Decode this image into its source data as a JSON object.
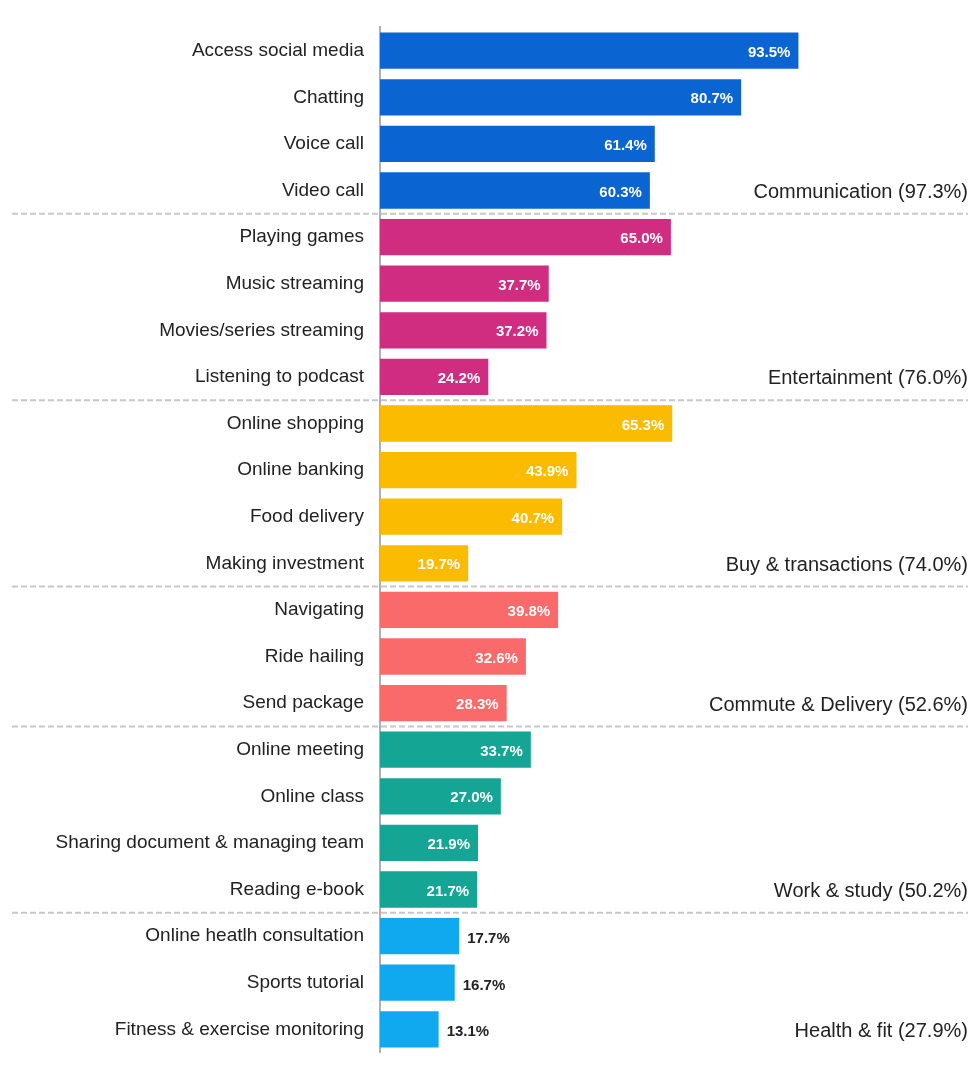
{
  "chart_data": {
    "type": "bar",
    "orientation": "horizontal",
    "categories": [
      "Access social media",
      "Chatting",
      "Voice call",
      "Video call",
      "Playing games",
      "Music streaming",
      "Movies/series streaming",
      "Listening to podcast",
      "Online shopping",
      "Online banking",
      "Food delivery",
      "Making investment",
      "Navigating",
      "Ride hailing",
      "Send package",
      "Online meeting",
      "Online class",
      "Sharing document & managing team",
      "Reading e-book",
      "Online heatlh consultation",
      "Sports tutorial",
      "Fitness & exercise monitoring"
    ],
    "values": [
      93.5,
      80.7,
      61.4,
      60.3,
      65.0,
      37.7,
      37.2,
      24.2,
      65.3,
      43.9,
      40.7,
      19.7,
      39.8,
      32.6,
      28.3,
      33.7,
      27.0,
      21.9,
      21.7,
      17.7,
      16.7,
      13.1
    ],
    "colors": [
      "#0a64d2",
      "#0a64d2",
      "#0a64d2",
      "#0a64d2",
      "#d02c80",
      "#d02c80",
      "#d02c80",
      "#d02c80",
      "#fbbb00",
      "#fbbb00",
      "#fbbb00",
      "#fbbb00",
      "#fa6a6a",
      "#fa6a6a",
      "#fa6a6a",
      "#14a594",
      "#14a594",
      "#14a594",
      "#14a594",
      "#10a8ee",
      "#10a8ee",
      "#10a8ee"
    ],
    "value_labels": [
      "93.5%",
      "80.7%",
      "61.4%",
      "60.3%",
      "65.0%",
      "37.7%",
      "37.2%",
      "24.2%",
      "65.3%",
      "43.9%",
      "40.7%",
      "19.7%",
      "39.8%",
      "32.6%",
      "28.3%",
      "33.7%",
      "27.0%",
      "21.9%",
      "21.7%",
      "17.7%",
      "16.7%",
      "13.1%"
    ],
    "annotations": [
      "Communication (97.3%)",
      "Entertainment (76.0%)",
      "Buy & transactions (74.0%)",
      "Commute & Delivery (52.6%)",
      "Work & study (50.2%)",
      "Health & fit (27.9%)"
    ],
    "grid": false,
    "legend": false
  }
}
